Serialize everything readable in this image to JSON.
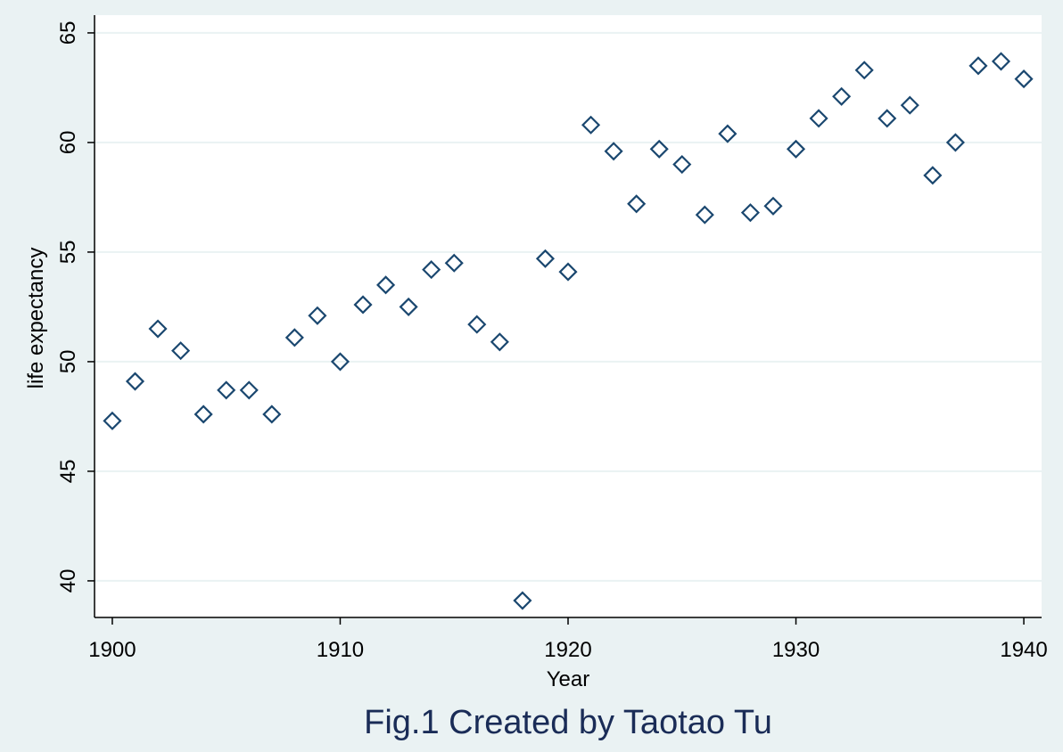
{
  "chart_data": {
    "type": "scatter",
    "xlabel": "Year",
    "ylabel": "life expectancy",
    "caption": "Fig.1 Created by Taotao Tu",
    "x": [
      1900,
      1901,
      1902,
      1903,
      1904,
      1905,
      1906,
      1907,
      1908,
      1909,
      1910,
      1911,
      1912,
      1913,
      1914,
      1915,
      1916,
      1917,
      1918,
      1919,
      1920,
      1921,
      1922,
      1923,
      1924,
      1925,
      1926,
      1927,
      1928,
      1929,
      1930,
      1931,
      1932,
      1933,
      1934,
      1935,
      1936,
      1937,
      1938,
      1939,
      1940
    ],
    "values": [
      47.3,
      49.1,
      51.5,
      50.5,
      47.6,
      48.7,
      48.7,
      47.6,
      51.1,
      52.1,
      50.0,
      52.6,
      53.5,
      52.5,
      54.2,
      54.5,
      51.7,
      50.9,
      39.1,
      54.7,
      54.1,
      60.8,
      59.6,
      57.2,
      59.7,
      59.0,
      56.7,
      60.4,
      56.8,
      57.1,
      59.7,
      61.1,
      62.1,
      63.3,
      61.1,
      61.7,
      58.5,
      60.0,
      63.5,
      63.7,
      62.9
    ],
    "color": "#1a476f",
    "xlim": [
      1899.22,
      1940.78
    ],
    "ylim": [
      38.33,
      65.81
    ],
    "xticks": [
      1900,
      1910,
      1920,
      1930,
      1940
    ],
    "yticks": [
      40,
      45,
      50,
      55,
      60,
      65
    ],
    "grid": true
  }
}
